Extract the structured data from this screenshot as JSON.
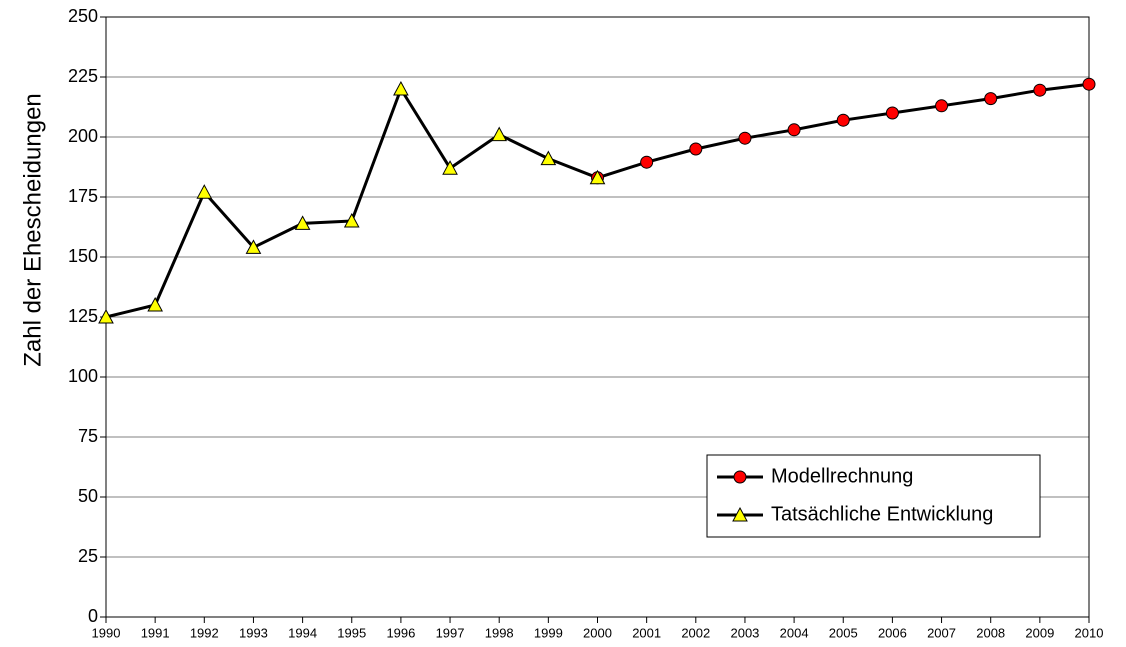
{
  "chart_data": {
    "type": "line",
    "y_label": "Zahl der Ehescheidungen",
    "x": [
      1990,
      1991,
      1992,
      1993,
      1994,
      1995,
      1996,
      1997,
      1998,
      1999,
      2000,
      2001,
      2002,
      2003,
      2004,
      2005,
      2006,
      2007,
      2008,
      2009,
      2010
    ],
    "xlim": [
      1990,
      2010
    ],
    "xticks": [
      1990,
      1991,
      1992,
      1993,
      1994,
      1995,
      1996,
      1997,
      1998,
      1999,
      2000,
      2001,
      2002,
      2003,
      2004,
      2005,
      2006,
      2007,
      2008,
      2009,
      2010
    ],
    "ylim": [
      0,
      250
    ],
    "yticks": [
      0,
      25,
      50,
      75,
      100,
      125,
      150,
      175,
      200,
      225,
      250
    ],
    "grid": true,
    "legend": "lower right",
    "line_color": "#000000",
    "series": [
      {
        "name": "Modellrechnung",
        "color": "#ff0000",
        "marker": "circle",
        "values": [
          null,
          null,
          null,
          null,
          null,
          null,
          null,
          null,
          null,
          null,
          183,
          189.5,
          195,
          199.5,
          203,
          207,
          210,
          213,
          216,
          219.5,
          222
        ]
      },
      {
        "name": "Tatsächliche Entwicklung",
        "color": "#ffff00",
        "marker": "triangle",
        "values": [
          125,
          130,
          177,
          154,
          164,
          165,
          220,
          187,
          201,
          191,
          183,
          null,
          null,
          null,
          null,
          null,
          null,
          null,
          null,
          null,
          null
        ]
      }
    ]
  }
}
